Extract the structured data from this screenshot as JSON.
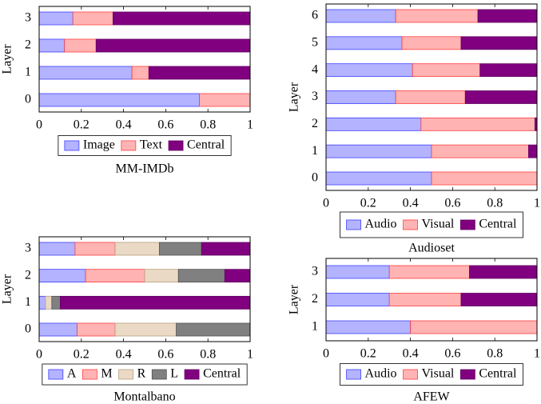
{
  "chart_data": [
    {
      "type": "bar",
      "orientation": "horizontal",
      "stacked": true,
      "xlabel": "MM-IMDb",
      "ylabel": "Layer",
      "categories": [
        "0",
        "1",
        "2",
        "3"
      ],
      "xlim": [
        0,
        1
      ],
      "xticks": [
        0,
        0.2,
        0.4,
        0.6,
        0.8,
        1
      ],
      "series": [
        {
          "name": "Image",
          "color": "#b3b3ff",
          "values": [
            0.76,
            0.44,
            0.12,
            0.16
          ]
        },
        {
          "name": "Text",
          "color": "#ffb3b3",
          "values": [
            0.24,
            0.08,
            0.15,
            0.19
          ]
        },
        {
          "name": "Central",
          "color": "#800080",
          "values": [
            0,
            0.48,
            0.73,
            0.65
          ]
        }
      ]
    },
    {
      "type": "bar",
      "orientation": "horizontal",
      "stacked": true,
      "xlabel": "Audioset",
      "ylabel": "Layer",
      "categories": [
        "0",
        "1",
        "2",
        "3",
        "4",
        "5",
        "6"
      ],
      "xlim": [
        0,
        1
      ],
      "xticks": [
        0,
        0.2,
        0.4,
        0.6,
        0.8,
        1
      ],
      "series": [
        {
          "name": "Audio",
          "color": "#b3b3ff",
          "values": [
            0.5,
            0.5,
            0.45,
            0.33,
            0.41,
            0.36,
            0.33
          ]
        },
        {
          "name": "Visual",
          "color": "#ffb3b3",
          "values": [
            0.5,
            0.46,
            0.54,
            0.33,
            0.32,
            0.28,
            0.39
          ]
        },
        {
          "name": "Central",
          "color": "#800080",
          "values": [
            0,
            0.04,
            0.01,
            0.34,
            0.27,
            0.36,
            0.28
          ]
        }
      ]
    },
    {
      "type": "bar",
      "orientation": "horizontal",
      "stacked": true,
      "xlabel": "Montalbano",
      "ylabel": "Layer",
      "categories": [
        "0",
        "1",
        "2",
        "3"
      ],
      "xlim": [
        0,
        1
      ],
      "xticks": [
        0,
        0.2,
        0.4,
        0.6,
        0.8,
        1
      ],
      "series": [
        {
          "name": "A",
          "color": "#b3b3ff",
          "values": [
            0.18,
            0.03,
            0.22,
            0.17
          ]
        },
        {
          "name": "M",
          "color": "#ffb3b3",
          "values": [
            0.18,
            0.0,
            0.28,
            0.19
          ]
        },
        {
          "name": "R",
          "color": "#ead9c4",
          "values": [
            0.29,
            0.03,
            0.16,
            0.21
          ]
        },
        {
          "name": "L",
          "color": "#808080",
          "values": [
            0.35,
            0.04,
            0.22,
            0.2
          ]
        },
        {
          "name": "Central",
          "color": "#800080",
          "values": [
            0,
            0.9,
            0.12,
            0.23
          ]
        }
      ]
    },
    {
      "type": "bar",
      "orientation": "horizontal",
      "stacked": true,
      "xlabel": "AFEW",
      "ylabel": "Layer",
      "categories": [
        "1",
        "2",
        "3"
      ],
      "xlim": [
        0,
        1
      ],
      "xticks": [
        0,
        0.2,
        0.4,
        0.6,
        0.8,
        1
      ],
      "series": [
        {
          "name": "Audio",
          "color": "#b3b3ff",
          "values": [
            0.4,
            0.3,
            0.3
          ]
        },
        {
          "name": "Visual",
          "color": "#ffb3b3",
          "values": [
            0.6,
            0.34,
            0.38
          ]
        },
        {
          "name": "Central",
          "color": "#800080",
          "values": [
            0,
            0.36,
            0.32
          ]
        }
      ]
    }
  ]
}
